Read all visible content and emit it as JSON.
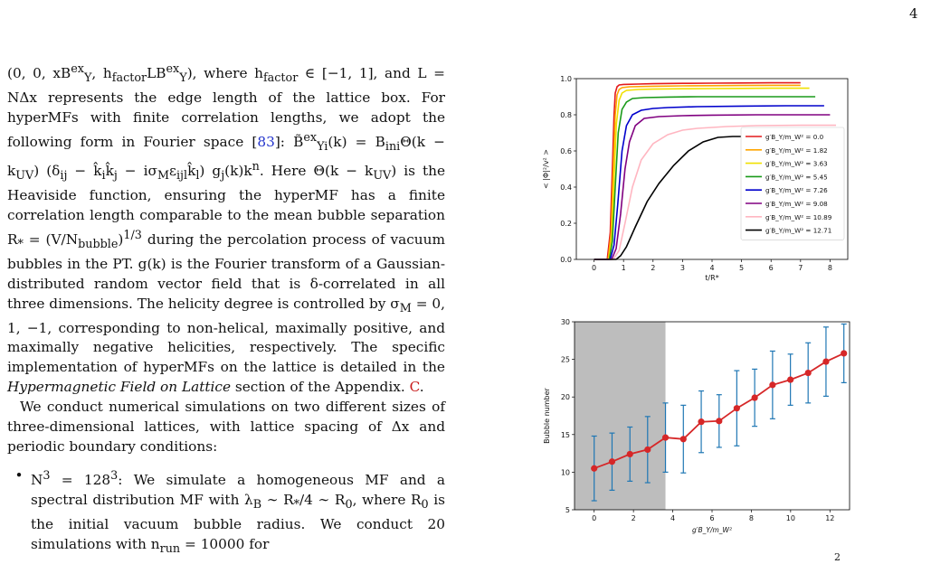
{
  "page_number": "4",
  "text": {
    "para1_a": "(0, 0, xB",
    "para1_b": "ex",
    "para1_c": "Y",
    "para1_d": ", h",
    "para1_e": "factor",
    "para1_f": "LB",
    "para1_g": "), where h",
    "para1_h": " ∈ [−1, 1], and L = NΔx represents the edge length of the lattice box. For hyperMFs with finite correlation lengths, we adopt the following form in Fourier space [",
    "ref83": "83",
    "para1_i": "]: B̃",
    "para1_j": "(k) = B",
    "para1_k": "ini",
    "para1_l": "Θ(k − k",
    "para1_m": "UV",
    "para1_n": ") (δ",
    "para1_o": " − k̂",
    "para1_p": "k̂",
    "para1_q": " − iσ",
    "para1_r": "M",
    "para1_s": "ε",
    "para1_t": "k̂",
    "para1_u": ") g",
    "para1_v": "(k)k",
    "para1_w": ".  Here Θ(k − k",
    "para1_x": ") is the Heaviside function, ensuring the hyperMF has a finite correlation length comparable to the mean bubble separation R",
    "para1_y": " = (V/N",
    "para1_z": "bubble",
    "para1_aa": ")",
    "para1_ab": " during the percolation process of vacuum bubbles in the PT. g(k) is the Fourier transform of a Gaussian-distributed random vector field that is δ-correlated in all three dimensions. The helicity degree is controlled by σ",
    "para1_ac": " = 0, 1, −1, corresponding to non-helical, maximally positive, and maximally negative helicities, respectively. The specific implementation of hyperMFs on the lattice is detailed in the ",
    "para1_italic": "Hypermagnetic Field on Lattice",
    "para1_ad": " section of the Appendix. ",
    "appx": "C",
    "para1_end": ".",
    "para2": "We conduct numerical simulations on two different sizes of three-dimensional lattices, with lattice spacing of Δx and periodic boundary conditions:",
    "bullet_symbol": "•",
    "bullet1_a": "N",
    "bullet1_b": " = 128",
    "bullet1_c": ": We simulate a homogeneous MF and a spectral distribution MF with λ",
    "bullet1_d": " ∼ R",
    "bullet1_e": "/4 ∼ R",
    "bullet1_f": ", where R",
    "bullet1_g": " is the initial vacuum bubble radius. We conduct 20 simulations with n",
    "bullet1_h": " = 10000 for",
    "sup3": "3",
    "sub_star": "*",
    "sub_0": "0",
    "sub_B": "B",
    "sub_n": "n",
    "sub_1_3": "1/3",
    "sub_ij": "ij",
    "sub_i": "i",
    "sub_j": "j",
    "sub_ijl": "ijl",
    "sub_l": "l",
    "sub_Yi": "Yi",
    "sub_Y": "Y",
    "sub_ex": "ex",
    "sub_factor": "factor",
    "sub_run": "run"
  },
  "figure_bottom_caption_fragment": "2",
  "chart_data": [
    {
      "type": "line",
      "title": "",
      "xlabel": "t/R*",
      "ylabel": "< |Φ|²/v² >",
      "xlim": [
        -0.6,
        8.6
      ],
      "ylim": [
        0,
        1.0
      ],
      "xticks": [
        "0",
        "1",
        "2",
        "3",
        "4",
        "5",
        "6",
        "7",
        "8"
      ],
      "yticks": [
        "0.0",
        "0.2",
        "0.4",
        "0.6",
        "0.8",
        "1.0"
      ],
      "grid": false,
      "legend": "right",
      "series": [
        {
          "name": "g′B_Y/m_W² = 0.0",
          "color": "#e31a1c",
          "x": [
            0,
            0.45,
            0.55,
            0.62,
            0.68,
            0.72,
            0.78,
            0.85,
            1.0,
            1.5,
            2,
            3,
            4,
            5,
            6,
            7
          ],
          "y": [
            0,
            0,
            0.15,
            0.5,
            0.8,
            0.92,
            0.955,
            0.965,
            0.968,
            0.97,
            0.972,
            0.974,
            0.975,
            0.976,
            0.977,
            0.977
          ]
        },
        {
          "name": "g′B_Y/m_W² = 1.82",
          "color": "#ffa500",
          "x": [
            0,
            0.48,
            0.58,
            0.65,
            0.72,
            0.78,
            0.85,
            0.95,
            1.2,
            2,
            3,
            4,
            5,
            6,
            7
          ],
          "y": [
            0,
            0,
            0.15,
            0.5,
            0.8,
            0.91,
            0.94,
            0.95,
            0.955,
            0.958,
            0.96,
            0.961,
            0.962,
            0.963,
            0.963
          ]
        },
        {
          "name": "g′B_Y/m_W² = 3.63",
          "color": "#f0e000",
          "x": [
            0,
            0.5,
            0.6,
            0.68,
            0.76,
            0.85,
            0.95,
            1.1,
            1.5,
            2,
            3,
            4,
            5,
            6,
            7.3
          ],
          "y": [
            0,
            0,
            0.12,
            0.45,
            0.75,
            0.88,
            0.92,
            0.935,
            0.94,
            0.942,
            0.944,
            0.945,
            0.946,
            0.947,
            0.947
          ]
        },
        {
          "name": "g′B_Y/m_W² = 5.45",
          "color": "#1a9a1a",
          "x": [
            0,
            0.52,
            0.62,
            0.72,
            0.82,
            0.95,
            1.1,
            1.3,
            1.7,
            2.5,
            3.5,
            5,
            6,
            7.5
          ],
          "y": [
            0,
            0,
            0.1,
            0.4,
            0.7,
            0.83,
            0.87,
            0.89,
            0.895,
            0.898,
            0.9,
            0.9,
            0.9,
            0.9
          ]
        },
        {
          "name": "g′B_Y/m_W² = 7.26",
          "color": "#0000cc",
          "x": [
            0,
            0.55,
            0.68,
            0.8,
            0.95,
            1.1,
            1.3,
            1.6,
            2,
            2.5,
            3.5,
            5,
            6.5,
            7.8
          ],
          "y": [
            0,
            0,
            0.08,
            0.3,
            0.6,
            0.74,
            0.8,
            0.825,
            0.835,
            0.84,
            0.845,
            0.848,
            0.85,
            0.85
          ]
        },
        {
          "name": "g′B_Y/m_W² = 9.08",
          "color": "#800080",
          "x": [
            0,
            0.6,
            0.75,
            0.9,
            1.05,
            1.2,
            1.4,
            1.7,
            2.2,
            3,
            4,
            5.5,
            7,
            8
          ],
          "y": [
            0,
            0,
            0.06,
            0.25,
            0.5,
            0.65,
            0.74,
            0.78,
            0.79,
            0.795,
            0.798,
            0.8,
            0.8,
            0.8
          ]
        },
        {
          "name": "g′B_Y/m_W² = 10.89",
          "color": "#ffb6c1",
          "x": [
            0,
            0.65,
            0.85,
            1.05,
            1.3,
            1.6,
            2,
            2.5,
            3,
            3.5,
            4.5,
            5.5,
            7,
            8.2
          ],
          "y": [
            0,
            0,
            0.05,
            0.2,
            0.4,
            0.55,
            0.64,
            0.69,
            0.715,
            0.725,
            0.735,
            0.74,
            0.742,
            0.742
          ]
        },
        {
          "name": "g′B_Y/m_W² = 12.71",
          "color": "#000000",
          "x": [
            0,
            0.75,
            0.9,
            1.1,
            1.4,
            1.8,
            2.2,
            2.7,
            3.2,
            3.7,
            4.2,
            4.7,
            5.2,
            6,
            7.3
          ],
          "y": [
            0,
            0,
            0.02,
            0.07,
            0.18,
            0.32,
            0.42,
            0.52,
            0.6,
            0.65,
            0.675,
            0.68,
            0.68,
            0.68,
            0.68
          ]
        }
      ]
    },
    {
      "type": "line",
      "title": "",
      "xlabel": "g′B_Y/m_W²",
      "ylabel": "Bubble number",
      "xlim": [
        -1,
        13
      ],
      "ylim": [
        5,
        30
      ],
      "xticks": [
        "0",
        "2",
        "4",
        "6",
        "8",
        "10",
        "12"
      ],
      "yticks": [
        "5",
        "10",
        "15",
        "20",
        "25",
        "30"
      ],
      "grid": false,
      "shaded_region": [
        -1,
        3.63
      ],
      "series": [
        {
          "name": "",
          "color": "#d62728",
          "errorbar_color": "#1f77b4",
          "x": [
            0,
            0.91,
            1.82,
            2.72,
            3.63,
            4.54,
            5.45,
            6.36,
            7.26,
            8.17,
            9.08,
            9.99,
            10.89,
            11.8,
            12.71
          ],
          "y": [
            10.5,
            11.4,
            12.4,
            13.0,
            14.6,
            14.4,
            16.7,
            16.8,
            18.5,
            19.9,
            21.6,
            22.3,
            23.2,
            24.7,
            25.8
          ],
          "err": [
            4.3,
            3.8,
            3.6,
            4.4,
            4.6,
            4.5,
            4.1,
            3.5,
            5.0,
            3.8,
            4.5,
            3.4,
            4.0,
            4.6,
            3.9
          ]
        }
      ]
    }
  ]
}
